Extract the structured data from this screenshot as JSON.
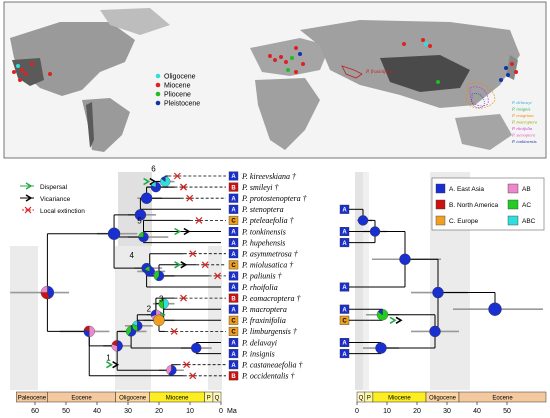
{
  "map": {
    "legend": [
      {
        "label": "Oligocene",
        "color": "#33dddd"
      },
      {
        "label": "Miocene",
        "color": "#dd2222"
      },
      {
        "label": "Pliocene",
        "color": "#22bb22"
      },
      {
        "label": "Pleistocene",
        "color": "#1133aa"
      }
    ],
    "inset_label": "P. fraxinifolia",
    "species_labels": [
      {
        "label": "P. delavayi",
        "color": "#33aadd"
      },
      {
        "label": "P. insignis",
        "color": "#22aa44"
      },
      {
        "label": "P. enagrima",
        "color": "#ee8800"
      },
      {
        "label": "P. macroptera",
        "color": "#88aa00"
      },
      {
        "label": "P. rhoifolia",
        "color": "#cc33cc"
      },
      {
        "label": "P. stenoptera",
        "color": "#dd55aa"
      },
      {
        "label": "P. tonkinensis",
        "color": "#2233aa"
      }
    ]
  },
  "events_legend": [
    {
      "label": "Dispersal",
      "color": "#22aa44"
    },
    {
      "label": "Vicariance",
      "color": "#000000"
    },
    {
      "label": "Local extinction",
      "color": "#dd2222"
    }
  ],
  "area_legend": [
    {
      "code": "A",
      "label": "A. East Asia",
      "color": "#1a2fd0"
    },
    {
      "code": "B",
      "label": "B. North America",
      "color": "#cc1111"
    },
    {
      "code": "C",
      "label": "C. Europe",
      "color": "#f0a020"
    },
    {
      "code": "AB",
      "label": "AB",
      "color": "#ee88cc"
    },
    {
      "code": "AC",
      "label": "AC",
      "color": "#22cc22"
    },
    {
      "code": "ABC",
      "label": "ABC",
      "color": "#33dddd"
    }
  ],
  "taxa": [
    {
      "name": "P. kireevskiana †",
      "area": "A"
    },
    {
      "name": "P. smileyi †",
      "area": "B"
    },
    {
      "name": "P. protostenoptera †",
      "area": "A"
    },
    {
      "name": "P. stenoptera",
      "area": "A"
    },
    {
      "name": "P. pteleaefolia †",
      "area": "C"
    },
    {
      "name": "P. tonkinensis",
      "area": "A"
    },
    {
      "name": "P. hupehensis",
      "area": "A"
    },
    {
      "name": "P. asymmetrosa †",
      "area": "A"
    },
    {
      "name": "P. miolusatica †",
      "area": "C"
    },
    {
      "name": "P. paliunis †",
      "area": "A"
    },
    {
      "name": "P. rhoifolia",
      "area": "A"
    },
    {
      "name": "P. eomacroptera †",
      "area": "B"
    },
    {
      "name": "P. macroptera",
      "area": "A"
    },
    {
      "name": "P. fraxinifolia",
      "area": "C"
    },
    {
      "name": "P. limburgensis †",
      "area": "C"
    },
    {
      "name": "P. delavayi",
      "area": "A"
    },
    {
      "name": "P. insignis",
      "area": "A"
    },
    {
      "name": "P. castaneaefolia †",
      "area": "A"
    },
    {
      "name": "P. occidentalis †",
      "area": "B"
    }
  ],
  "right_tips": [
    {
      "row": 3,
      "area": "A"
    },
    {
      "row": 5,
      "area": "A"
    },
    {
      "row": 6,
      "area": "A"
    },
    {
      "row": 10,
      "area": "A"
    },
    {
      "row": 12,
      "area": "A"
    },
    {
      "row": 13,
      "area": "C"
    },
    {
      "row": 15,
      "area": "A"
    },
    {
      "row": 16,
      "area": "A"
    }
  ],
  "node_numbers": [
    "1",
    "2",
    "3",
    "4",
    "5",
    "6"
  ],
  "left_axis": {
    "ticks": [
      "60",
      "50",
      "40",
      "30",
      "20",
      "10",
      "0"
    ],
    "unit": "Ma",
    "epochs": [
      "Paleocene",
      "Eocene",
      "Oligocene",
      "Miocene",
      "P",
      "Q"
    ]
  },
  "right_axis": {
    "ticks": [
      "0",
      "10",
      "20",
      "30",
      "40",
      "50"
    ],
    "epochs": [
      "Q",
      "P",
      "Miocene",
      "Oligocene",
      "Eocene"
    ]
  }
}
